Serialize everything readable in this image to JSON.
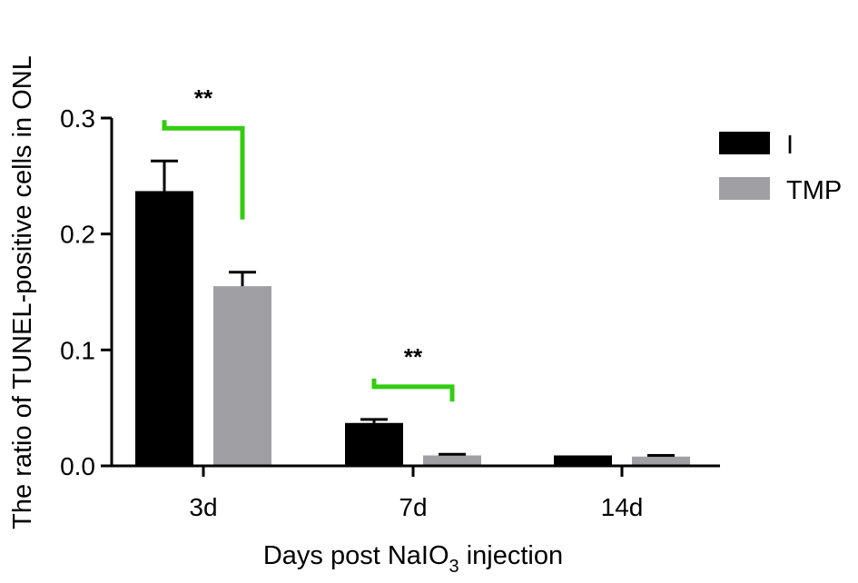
{
  "chart_data": {
    "type": "bar",
    "categories": [
      "3d",
      "7d",
      "14d"
    ],
    "series": [
      {
        "name": "I",
        "color": "#000000",
        "values": [
          0.237,
          0.037,
          0.009
        ],
        "errors": [
          0.026,
          0.003,
          0.0
        ]
      },
      {
        "name": "TMP",
        "color": "#a0a0a4",
        "values": [
          0.155,
          0.009,
          0.008
        ],
        "errors": [
          0.012,
          0.001,
          0.001
        ]
      }
    ],
    "xlabel_main": "Days post NaIO",
    "xlabel_sub": "3",
    "xlabel_tail": " injection",
    "ylabel": "The ratio of TUNEL-positive cells in ONL",
    "ylim": [
      0,
      0.3
    ],
    "yticks": [
      0.0,
      0.1,
      0.2,
      0.3
    ],
    "ytick_labels": [
      "0.0",
      "0.1",
      "0.2",
      "0.3"
    ],
    "legend_position": "right",
    "grid": false,
    "annotations": [
      {
        "category": "3d",
        "label": "**",
        "color": "#33cc11"
      },
      {
        "category": "7d",
        "label": "**",
        "color": "#33cc11"
      }
    ]
  }
}
